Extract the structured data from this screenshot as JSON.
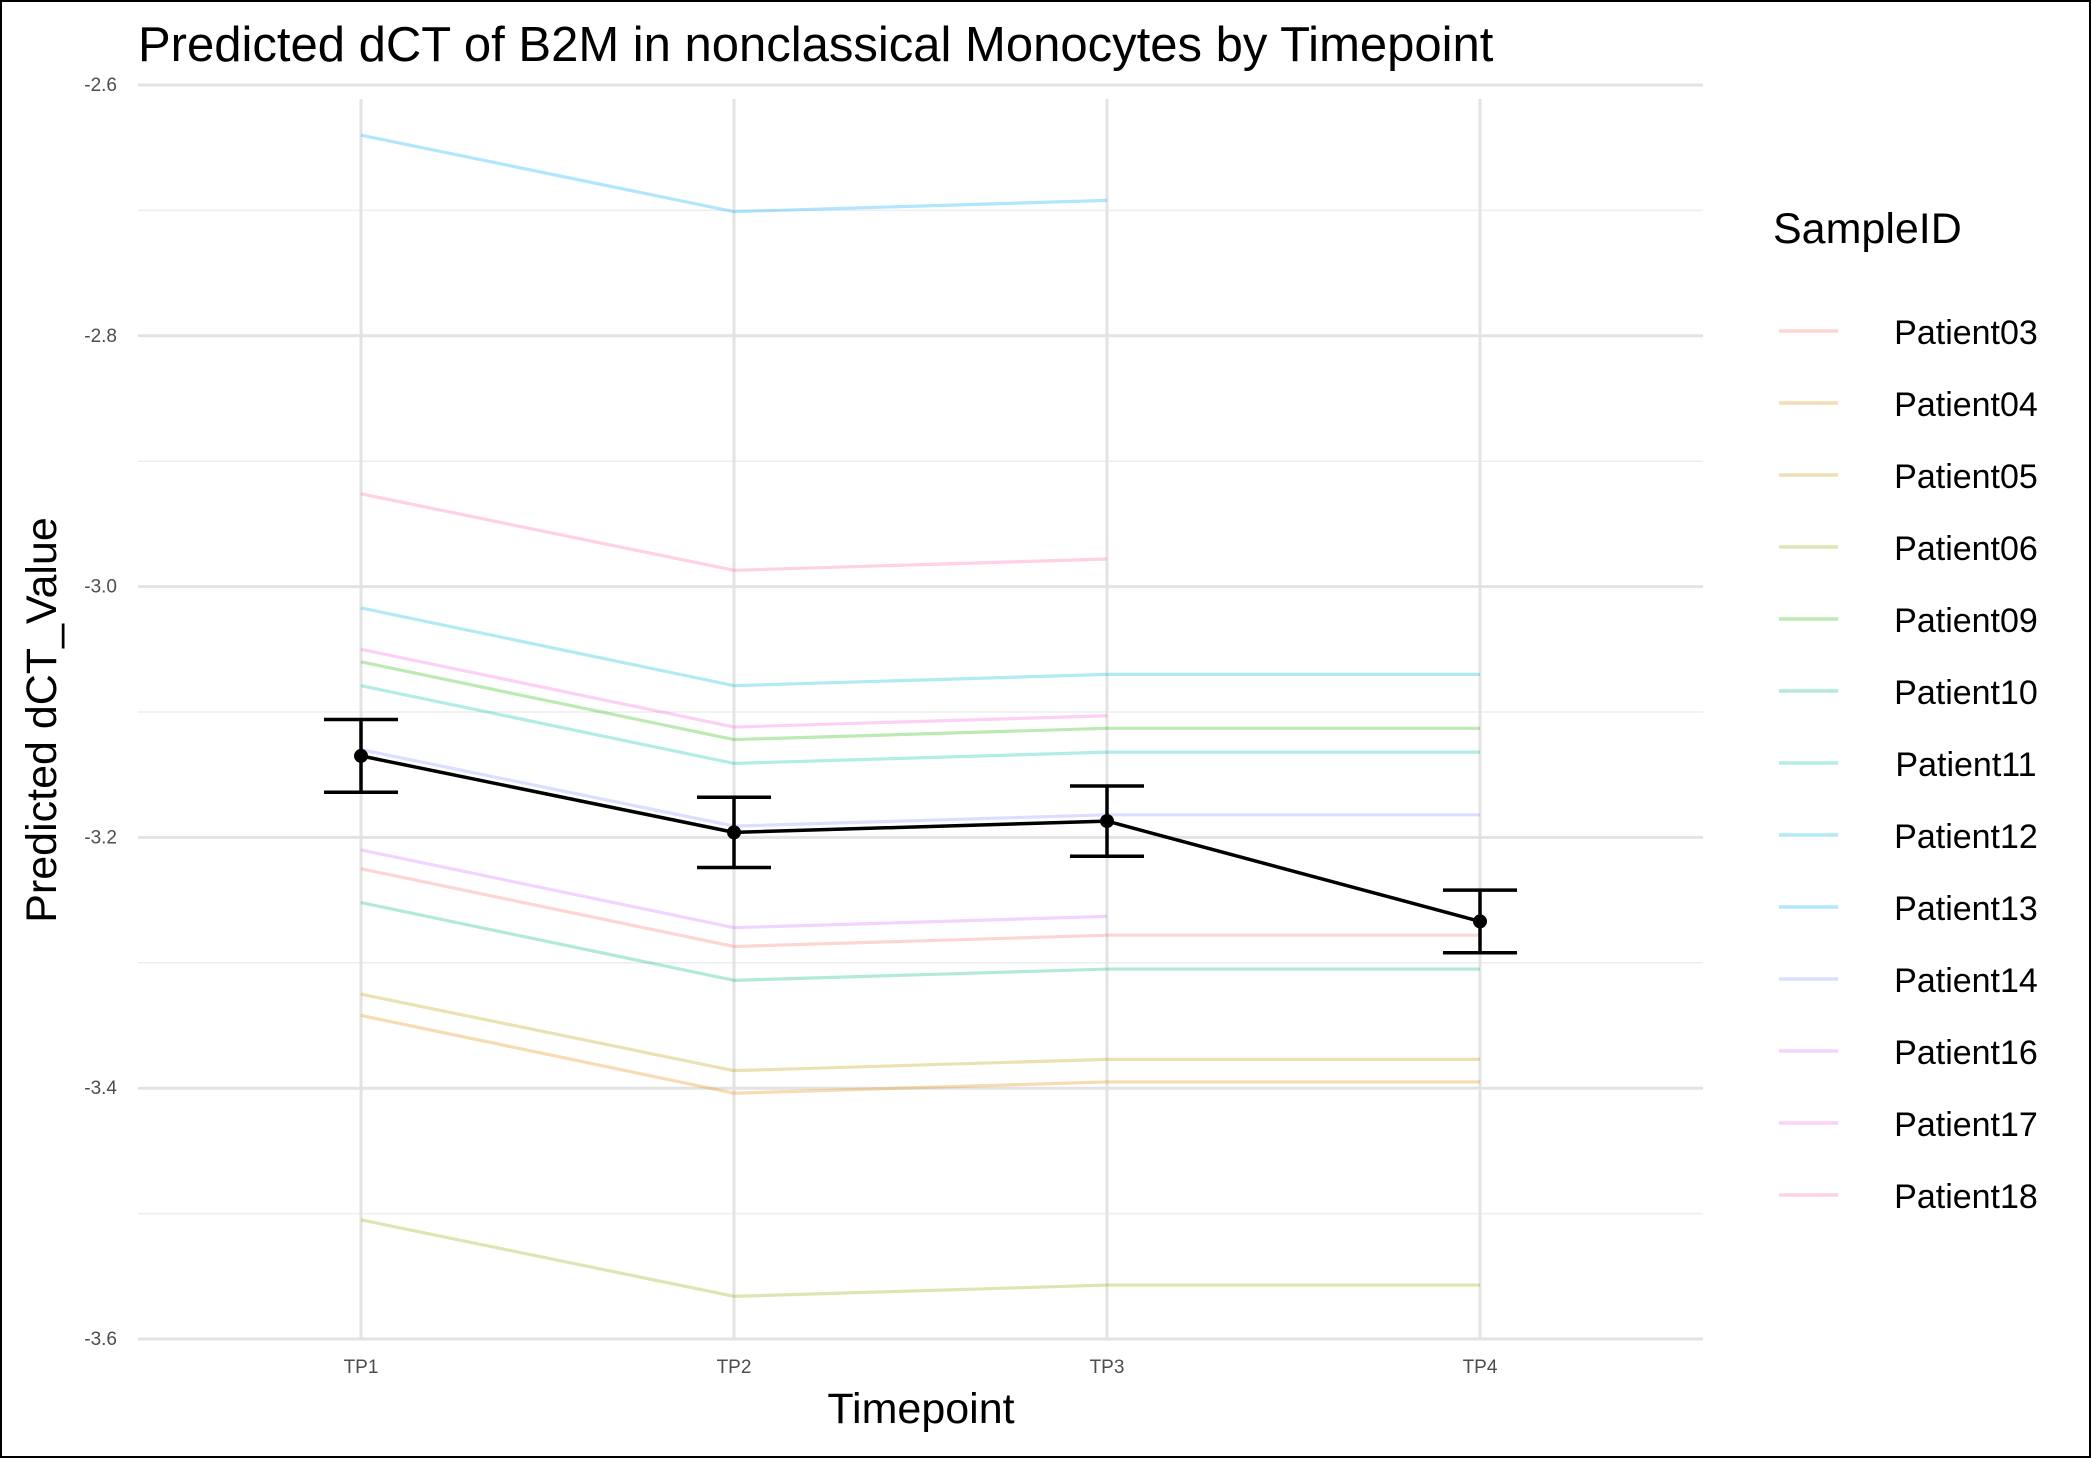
{
  "chart_data": {
    "type": "line",
    "title": "Predicted dCT of  B2M in  nonclassical  Monocytes by Timepoint",
    "xlabel": "Timepoint",
    "ylabel": "Predicted dCT_Value",
    "categories": [
      "TP1",
      "TP2",
      "TP3",
      "TP4"
    ],
    "ylim": [
      -3.6,
      -2.6
    ],
    "yticks": [
      -3.6,
      -3.4,
      -3.2,
      -3.0,
      -2.8,
      -2.6
    ],
    "ytick_labels": [
      "-3.6",
      "-3.4",
      "-3.2",
      "-3.0",
      "-2.8",
      "-2.6"
    ],
    "grid": true,
    "legend": {
      "title": "SampleID",
      "position": "right"
    },
    "series": [
      {
        "name": "Patient03",
        "color": "#F8766D",
        "values": [
          -3.225,
          -3.287,
          -3.278,
          -3.278
        ]
      },
      {
        "name": "Patient04",
        "color": "#E18A00",
        "values": [
          -3.342,
          -3.404,
          -3.395,
          -3.395
        ]
      },
      {
        "name": "Patient05",
        "color": "#BE9C00",
        "values": [
          -3.325,
          -3.386,
          -3.377,
          -3.377
        ]
      },
      {
        "name": "Patient06",
        "color": "#8CAB00",
        "values": [
          -3.505,
          -3.566,
          -3.557,
          -3.557
        ]
      },
      {
        "name": "Patient09",
        "color": "#24B700",
        "values": [
          -3.06,
          -3.122,
          -3.113,
          -3.113
        ]
      },
      {
        "name": "Patient10",
        "color": "#00BE70",
        "values": [
          -3.252,
          -3.314,
          -3.305,
          -3.305
        ]
      },
      {
        "name": "Patient11",
        "color": "#00C1AB",
        "values": [
          -3.079,
          -3.141,
          -3.132,
          -3.132
        ]
      },
      {
        "name": "Patient12",
        "color": "#00BBDA",
        "values": [
          -3.017,
          -3.079,
          -3.07,
          -3.07
        ]
      },
      {
        "name": "Patient13",
        "color": "#00ACFC",
        "values": [
          -2.64,
          -2.701,
          -2.692,
          null
        ]
      },
      {
        "name": "Patient14",
        "color": "#8B93FF",
        "values": [
          -3.13,
          -3.191,
          -3.182,
          -3.182
        ]
      },
      {
        "name": "Patient16",
        "color": "#D575FE",
        "values": [
          -3.21,
          -3.272,
          -3.263,
          null
        ]
      },
      {
        "name": "Patient17",
        "color": "#F962DD",
        "values": [
          -3.05,
          -3.112,
          -3.103,
          null
        ]
      },
      {
        "name": "Patient18",
        "color": "#FF65AC",
        "values": [
          -2.926,
          -2.987,
          -2.978,
          null
        ]
      }
    ],
    "mean": {
      "color": "#000000",
      "values": [
        -3.135,
        -3.196,
        -3.187,
        -3.267
      ],
      "ci_low": [
        -3.164,
        -3.224,
        -3.215,
        -3.292
      ],
      "ci_high": [
        -3.106,
        -3.168,
        -3.159,
        -3.242
      ]
    }
  }
}
